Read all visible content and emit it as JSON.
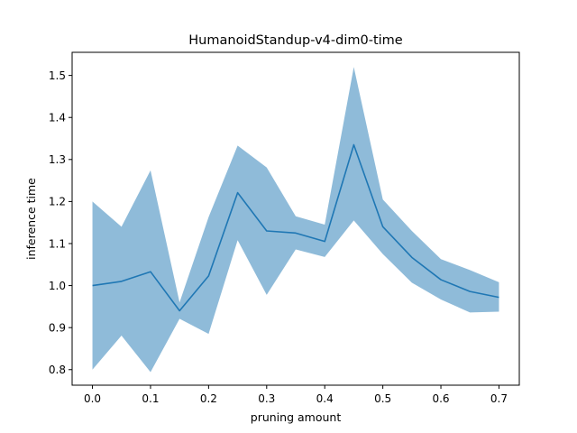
{
  "chart_data": {
    "type": "line",
    "title": "HumanoidStandup-v4-dim0-time",
    "xlabel": "pruning amount",
    "ylabel": "inference time",
    "xlim": [
      -0.035,
      0.735
    ],
    "ylim": [
      0.763,
      1.555
    ],
    "xticks": [
      0.0,
      0.1,
      0.2,
      0.3,
      0.4,
      0.5,
      0.6,
      0.7
    ],
    "xtick_labels": [
      "0.0",
      "0.1",
      "0.2",
      "0.3",
      "0.4",
      "0.5",
      "0.6",
      "0.7"
    ],
    "yticks": [
      0.8,
      0.9,
      1.0,
      1.1,
      1.2,
      1.3,
      1.4,
      1.5
    ],
    "ytick_labels": [
      "0.8",
      "0.9",
      "1.0",
      "1.1",
      "1.2",
      "1.3",
      "1.4",
      "1.5"
    ],
    "grid": false,
    "line_color": "#1f77b4",
    "band_color": "#1f77b4",
    "series": [
      {
        "x": [
          0.0,
          0.05,
          0.1,
          0.15,
          0.2,
          0.25,
          0.3,
          0.35,
          0.4,
          0.45,
          0.5,
          0.55,
          0.6,
          0.65,
          0.7
        ],
        "y": [
          1.0,
          1.01,
          1.033,
          0.94,
          1.023,
          1.221,
          1.13,
          1.125,
          1.105,
          1.335,
          1.14,
          1.067,
          1.014,
          0.986,
          0.972
        ],
        "lower": [
          0.8,
          0.881,
          0.794,
          0.921,
          0.885,
          1.108,
          0.978,
          1.086,
          1.068,
          1.155,
          1.075,
          1.007,
          0.967,
          0.936,
          0.938
        ],
        "upper": [
          1.2,
          1.14,
          1.274,
          0.96,
          1.163,
          1.333,
          1.281,
          1.165,
          1.145,
          1.52,
          1.205,
          1.13,
          1.063,
          1.037,
          1.008
        ]
      }
    ]
  }
}
